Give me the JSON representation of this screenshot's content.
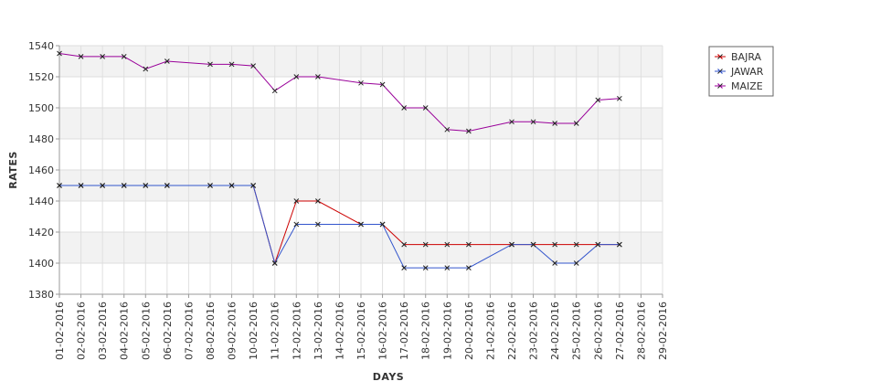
{
  "chart_data": {
    "type": "line",
    "xlabel": "DAYS",
    "ylabel": "RATES",
    "ylim": [
      1380,
      1540
    ],
    "yticks": [
      1380,
      1400,
      1420,
      1440,
      1460,
      1480,
      1500,
      1520,
      1540
    ],
    "grid": true,
    "legend_position": "top-right",
    "categories": [
      "01-02-2016",
      "02-02-2016",
      "03-02-2016",
      "04-02-2016",
      "05-02-2016",
      "06-02-2016",
      "07-02-2016",
      "08-02-2016",
      "09-02-2016",
      "10-02-2016",
      "11-02-2016",
      "12-02-2016",
      "13-02-2016",
      "14-02-2016",
      "15-02-2016",
      "16-02-2016",
      "17-02-2016",
      "18-02-2016",
      "19-02-2016",
      "20-02-2016",
      "21-02-2016",
      "22-02-2016",
      "23-02-2016",
      "24-02-2016",
      "25-02-2016",
      "26-02-2016",
      "27-02-2016",
      "28-02-2016",
      "29-02-2016"
    ],
    "series": [
      {
        "name": "BAJRA",
        "color": "#cc0000",
        "values": [
          1450,
          1450,
          1450,
          1450,
          1450,
          1450,
          null,
          1450,
          1450,
          1450,
          1400,
          1440,
          1440,
          null,
          1425,
          1425,
          1412,
          1412,
          1412,
          1412,
          null,
          1412,
          1412,
          1412,
          1412,
          1412,
          1412,
          null,
          null
        ]
      },
      {
        "name": "JAWAR",
        "color": "#3355cc",
        "values": [
          1450,
          1450,
          1450,
          1450,
          1450,
          1450,
          null,
          1450,
          1450,
          1450,
          1400,
          1425,
          1425,
          null,
          1425,
          1425,
          1397,
          1397,
          1397,
          1397,
          null,
          1412,
          1412,
          1400,
          1400,
          1412,
          1412,
          null,
          null
        ]
      },
      {
        "name": "MAIZE",
        "color": "#990099",
        "values": [
          1535,
          1533,
          1533,
          1533,
          1525,
          1530,
          null,
          1528,
          1528,
          1527,
          1511,
          1520,
          1520,
          null,
          1516,
          1515,
          1500,
          1500,
          1486,
          1485,
          null,
          1491,
          1491,
          1490,
          1490,
          1505,
          1506,
          null,
          null
        ]
      }
    ]
  }
}
